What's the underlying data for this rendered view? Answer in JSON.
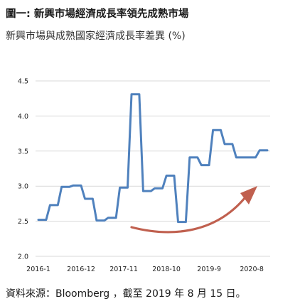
{
  "figure_title": "圖一: 新興市場經濟成長率領先成熟市場",
  "source_note": "資料來源：Bloomberg ，截至 2019 年 8 月 15 日。",
  "chart_data": {
    "type": "line",
    "title": "",
    "subtitle": "新興市場與成熟國家經濟成長率差異 (%)",
    "xlabel": "",
    "ylabel": "",
    "ylim": [
      2.0,
      4.5
    ],
    "yticks": [
      2.0,
      2.5,
      3.0,
      3.5,
      4.0,
      4.5
    ],
    "ytick_labels": [
      "2.0",
      "2.5",
      "3.0",
      "3.5",
      "4.0",
      "4.5"
    ],
    "xticks": [
      "2016-1",
      "2016-12",
      "2017-11",
      "2018-10",
      "2019-9",
      "2020-8"
    ],
    "grid": true,
    "legend": "none",
    "colors": {
      "line": "#4f81bd",
      "arrow": "#c0604f",
      "grid": "#d9d9d9"
    },
    "x_months": [
      "2016-01",
      "2016-02",
      "2016-03",
      "2016-04",
      "2016-05",
      "2016-06",
      "2016-07",
      "2016-08",
      "2016-09",
      "2016-10",
      "2016-11",
      "2016-12",
      "2017-01",
      "2017-02",
      "2017-03",
      "2017-04",
      "2017-05",
      "2017-06",
      "2017-07",
      "2017-08",
      "2017-09",
      "2017-10",
      "2017-11",
      "2017-12",
      "2018-01",
      "2018-02",
      "2018-03",
      "2018-04",
      "2018-05",
      "2018-06",
      "2018-07",
      "2018-08",
      "2018-09",
      "2018-10",
      "2018-11",
      "2018-12",
      "2019-01",
      "2019-02",
      "2019-03",
      "2019-04",
      "2019-05",
      "2019-06",
      "2019-07",
      "2019-08",
      "2019-09",
      "2019-10",
      "2019-11",
      "2019-12",
      "2020-01",
      "2020-02",
      "2020-03",
      "2020-04",
      "2020-05",
      "2020-06",
      "2020-07",
      "2020-08",
      "2020-09",
      "2020-10",
      "2020-11",
      "2020-12"
    ],
    "series": [
      {
        "values": [
          2.52,
          2.52,
          2.52,
          2.73,
          2.73,
          2.73,
          2.99,
          2.99,
          2.99,
          3.01,
          3.01,
          3.01,
          2.82,
          2.82,
          2.82,
          2.51,
          2.51,
          2.51,
          2.55,
          2.55,
          2.55,
          2.98,
          2.98,
          2.98,
          4.31,
          4.31,
          4.31,
          2.93,
          2.93,
          2.93,
          2.97,
          2.97,
          2.97,
          3.15,
          3.15,
          3.15,
          2.49,
          2.49,
          2.49,
          3.41,
          3.41,
          3.41,
          3.3,
          3.3,
          3.3,
          3.8,
          3.8,
          3.8,
          3.6,
          3.6,
          3.6,
          3.41,
          3.41,
          3.41,
          3.41,
          3.41,
          3.41,
          3.51,
          3.51,
          3.51
        ]
      }
    ]
  }
}
